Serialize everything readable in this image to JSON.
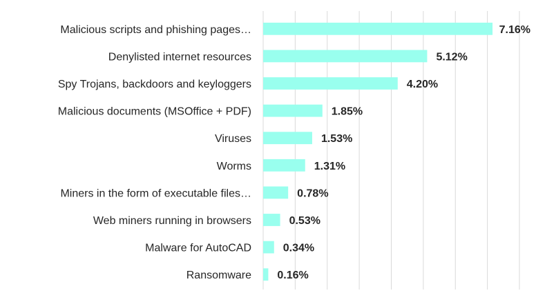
{
  "chart_data": {
    "type": "bar",
    "orientation": "horizontal",
    "title": "",
    "xlabel": "",
    "ylabel": "",
    "categories": [
      "Malicious scripts and phishing pages…",
      "Denylisted internet resources",
      "Spy Trojans, backdoors and keyloggers",
      "Malicious documents (MSOffice + PDF)",
      "Viruses",
      "Worms",
      "Miners in the form of executable files…",
      "Web miners running in browsers",
      "Malware for AutoCAD",
      "Ransomware"
    ],
    "values": [
      7.16,
      5.12,
      4.2,
      1.85,
      1.53,
      1.31,
      0.78,
      0.53,
      0.34,
      0.16
    ],
    "value_labels": [
      "7.16%",
      "5.12%",
      "4.20%",
      "1.85%",
      "1.53%",
      "1.31%",
      "0.78%",
      "0.53%",
      "0.34%",
      "0.16%"
    ],
    "xlim": [
      0,
      8
    ],
    "grid": true,
    "legend": "none",
    "bar_color": "#99ffee",
    "grid_color": "#d9d9d9"
  }
}
